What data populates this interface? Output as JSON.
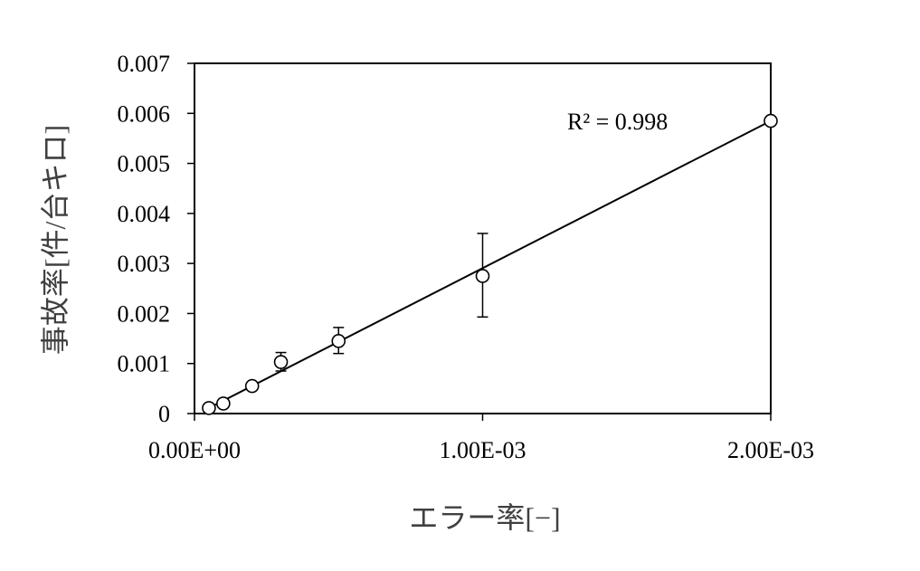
{
  "chart_data": {
    "type": "scatter",
    "title": "",
    "xlabel": "エラー率[−]",
    "ylabel": "事故率[件/台キロ]",
    "xlim": [
      0,
      0.002
    ],
    "ylim": [
      0,
      0.007
    ],
    "x_ticks": [
      {
        "value": 0,
        "label": "0.00E+00"
      },
      {
        "value": 0.001,
        "label": "1.00E-03"
      },
      {
        "value": 0.002,
        "label": "2.00E-03"
      }
    ],
    "y_ticks": [
      {
        "value": 0,
        "label": "0"
      },
      {
        "value": 0.001,
        "label": "0.001"
      },
      {
        "value": 0.002,
        "label": "0.002"
      },
      {
        "value": 0.003,
        "label": "0.003"
      },
      {
        "value": 0.004,
        "label": "0.004"
      },
      {
        "value": 0.005,
        "label": "0.005"
      },
      {
        "value": 0.006,
        "label": "0.006"
      },
      {
        "value": 0.007,
        "label": "0.007"
      }
    ],
    "grid": false,
    "legend": "none",
    "series": [
      {
        "marker": "open-circle",
        "points": [
          {
            "x": 5e-05,
            "y": 0.00011
          },
          {
            "x": 0.0001,
            "y": 0.0002
          },
          {
            "x": 0.0002,
            "y": 0.00055
          },
          {
            "x": 0.0003,
            "y": 0.00103,
            "err_low": 0.00085,
            "err_high": 0.00122
          },
          {
            "x": 0.0005,
            "y": 0.00145,
            "err_low": 0.0012,
            "err_high": 0.00172
          },
          {
            "x": 0.001,
            "y": 0.00275,
            "err_low": 0.00193,
            "err_high": 0.0036
          },
          {
            "x": 0.002,
            "y": 0.00585
          }
        ]
      }
    ],
    "trendline": {
      "type": "linear",
      "from": {
        "x": 5e-05,
        "y": 0.00011
      },
      "to": {
        "x": 0.002,
        "y": 0.00585
      }
    },
    "annotations": [
      {
        "text": "R² = 0.998"
      }
    ]
  }
}
